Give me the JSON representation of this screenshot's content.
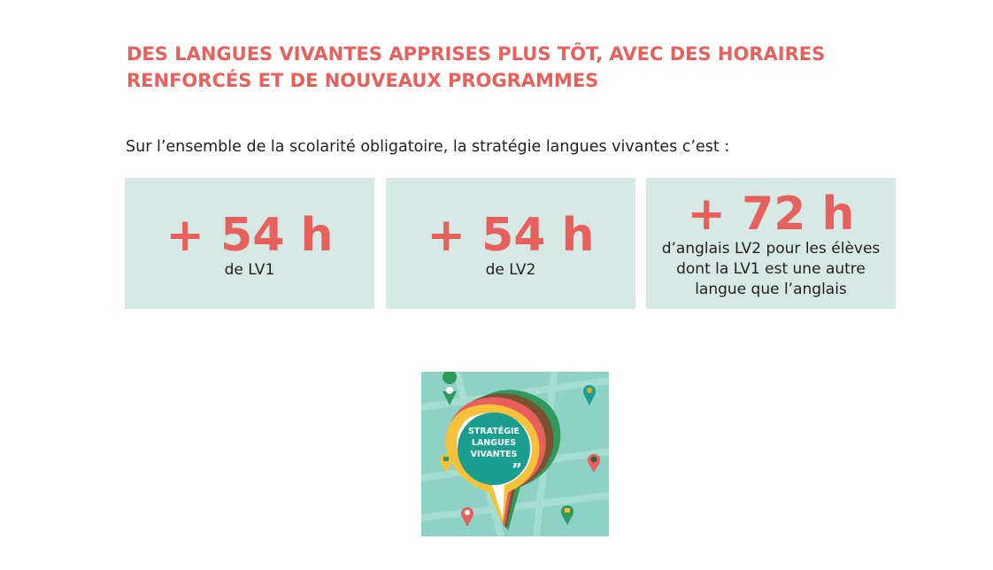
{
  "headline": {
    "line1": "DES LANGUES VIVANTES APPRISES PLUS TÔT, AVEC DES HORAIRES",
    "line2": "RENFORCÉS ET DE NOUVEAUX PROGRAMMES"
  },
  "intro": "Sur l’ensemble de la scolarité obligatoire, la stratégie langues vivantes c’est :",
  "stats": [
    {
      "value": "+ 54 h",
      "label": "de LV1"
    },
    {
      "value": "+ 54 h",
      "label": "de LV2"
    },
    {
      "value": "+ 72 h",
      "label_lines": [
        "d’anglais LV2 pour les élèves",
        "dont la LV1 est une autre",
        "langue que l’anglais"
      ]
    }
  ],
  "logo": {
    "lines": [
      "STRATÉGIE",
      "LANGUES",
      "VIVANTES"
    ],
    "quote_mark": "”"
  },
  "colors": {
    "accent": "#e8605c",
    "box_background": "#d6e9e5",
    "text": "#231f20",
    "logo_background": "#8ed1c6",
    "logo_center": "#1a9e8f"
  }
}
